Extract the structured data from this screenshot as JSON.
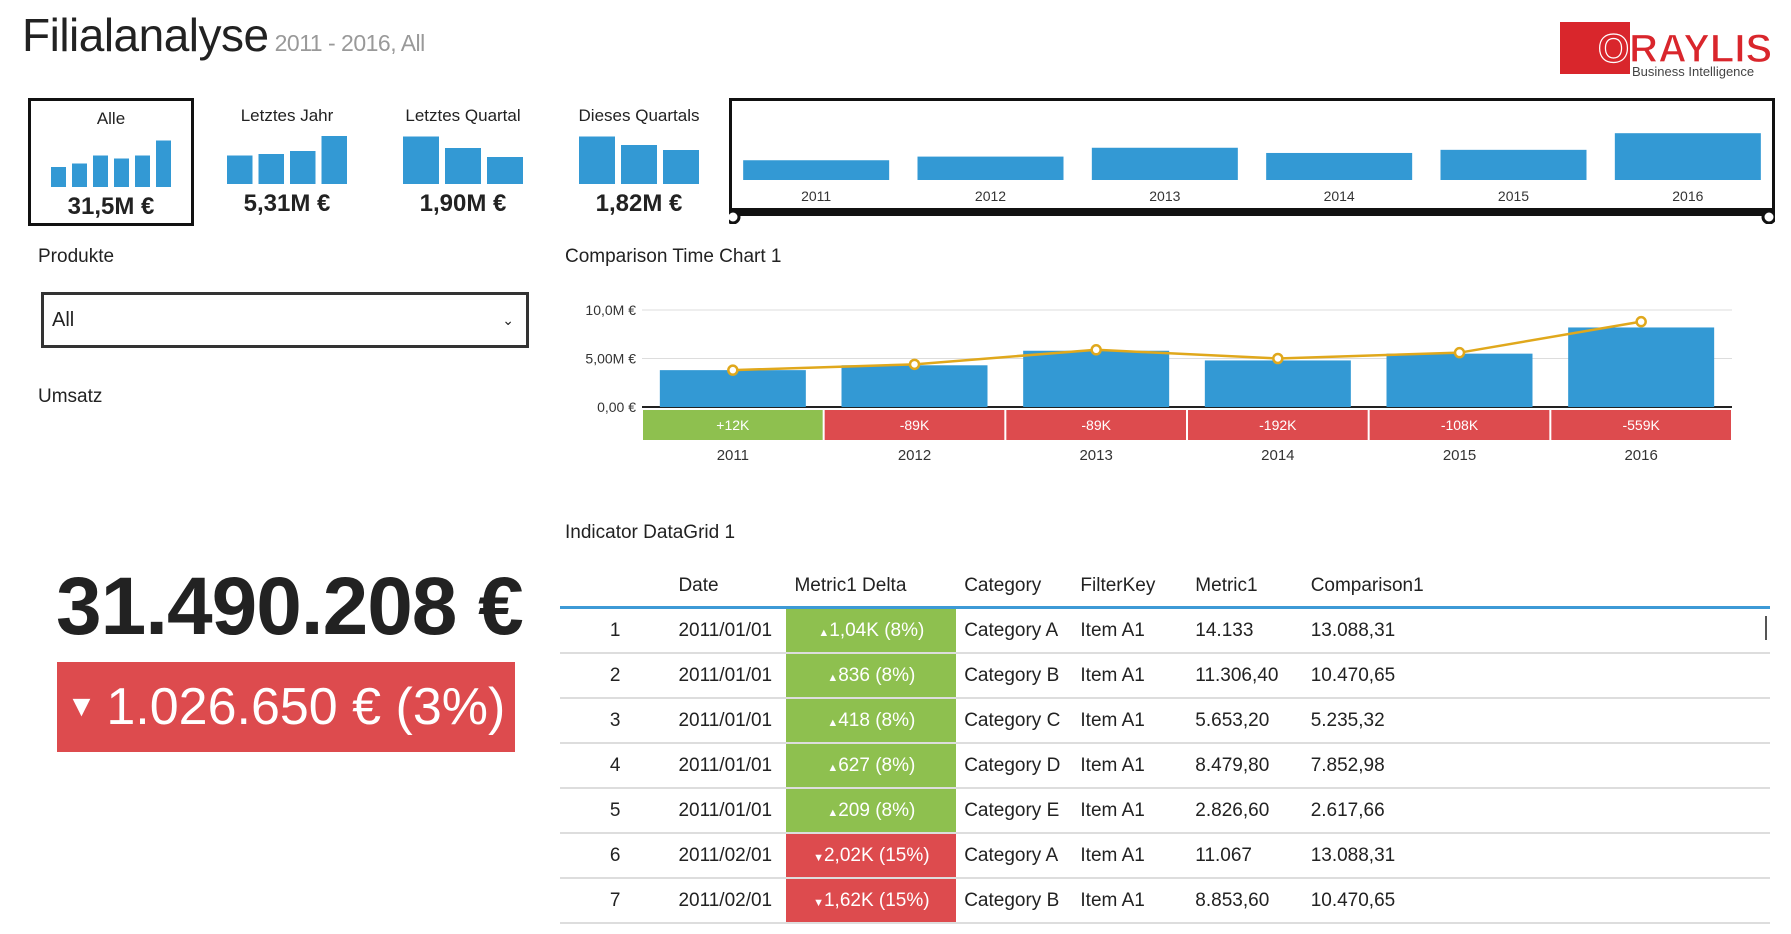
{
  "header": {
    "title": "Filialanalyse",
    "subtitle": "2011 - 2016, All",
    "logo_text": "ORAYLIS",
    "logo_tagline": "Business Intelligence"
  },
  "colors": {
    "bar": "#3399d4",
    "line": "#e0a81c",
    "positive": "#8ec04f",
    "negative": "#dd4b4e",
    "logo_red": "#d9262c"
  },
  "kpi_tiles": [
    {
      "label": "Alle",
      "value": "31,5M €",
      "selected": true,
      "bars": [
        0.4,
        0.47,
        0.63,
        0.57,
        0.63,
        0.93
      ]
    },
    {
      "label": "Letztes Jahr",
      "value": "5,31M €",
      "selected": false,
      "bars": [
        0.57,
        0.6,
        0.66,
        0.96
      ]
    },
    {
      "label": "Letztes Quartal",
      "value": "1,90M €",
      "selected": false,
      "bars": [
        0.95,
        0.72,
        0.54
      ]
    },
    {
      "label": "Dieses Quartals",
      "value": "1,82M €",
      "selected": false,
      "bars": [
        0.95,
        0.78,
        0.68
      ]
    }
  ],
  "year_slider": {
    "years": [
      "2011",
      "2012",
      "2013",
      "2014",
      "2015",
      "2016"
    ],
    "values": [
      0.38,
      0.45,
      0.62,
      0.52,
      0.58,
      0.9
    ]
  },
  "produkte": {
    "label": "Produkte",
    "selected": "All"
  },
  "umsatz": {
    "label": "Umsatz",
    "value": "31.490.208 €",
    "delta": "1.026.650 € (3%)",
    "delta_direction": "down"
  },
  "comparison_chart": {
    "title": "Comparison Time Chart 1",
    "chart_data": {
      "type": "bar",
      "categories": [
        "2011",
        "2012",
        "2013",
        "2014",
        "2015",
        "2016"
      ],
      "series": [
        {
          "type": "bar",
          "values": [
            3.8,
            4.3,
            5.8,
            4.8,
            5.5,
            8.2
          ]
        },
        {
          "type": "line",
          "values": [
            3.8,
            4.4,
            5.9,
            5.0,
            5.6,
            8.8
          ]
        }
      ],
      "y_ticks": [
        "0,00 €",
        "5,00M €",
        "10,0M €"
      ],
      "ylim": [
        0,
        10
      ],
      "deltas": [
        "+12K",
        "-89K",
        "-89K",
        "-192K",
        "-108K",
        "-559K"
      ],
      "delta_signs": [
        "positive",
        "negative",
        "negative",
        "negative",
        "negative",
        "negative"
      ]
    }
  },
  "datagrid": {
    "title": "Indicator DataGrid 1",
    "columns": [
      "",
      "Date",
      "Metric1 Delta",
      "Category",
      "FilterKey",
      "Metric1",
      "Comparison1"
    ],
    "rows": [
      {
        "idx": "1",
        "date": "2011/01/01",
        "delta": "1,04K (8%)",
        "dir": "up",
        "category": "Category A",
        "filterkey": "Item A1",
        "metric1": "14.133",
        "comparison1": "13.088,31"
      },
      {
        "idx": "2",
        "date": "2011/01/01",
        "delta": "836 (8%)",
        "dir": "up",
        "category": "Category B",
        "filterkey": "Item A1",
        "metric1": "11.306,40",
        "comparison1": "10.470,65"
      },
      {
        "idx": "3",
        "date": "2011/01/01",
        "delta": "418 (8%)",
        "dir": "up",
        "category": "Category C",
        "filterkey": "Item A1",
        "metric1": "5.653,20",
        "comparison1": "5.235,32"
      },
      {
        "idx": "4",
        "date": "2011/01/01",
        "delta": "627 (8%)",
        "dir": "up",
        "category": "Category D",
        "filterkey": "Item A1",
        "metric1": "8.479,80",
        "comparison1": "7.852,98"
      },
      {
        "idx": "5",
        "date": "2011/01/01",
        "delta": "209 (8%)",
        "dir": "up",
        "category": "Category E",
        "filterkey": "Item A1",
        "metric1": "2.826,60",
        "comparison1": "2.617,66"
      },
      {
        "idx": "6",
        "date": "2011/02/01",
        "delta": "2,02K (15%)",
        "dir": "down",
        "category": "Category A",
        "filterkey": "Item A1",
        "metric1": "11.067",
        "comparison1": "13.088,31"
      },
      {
        "idx": "7",
        "date": "2011/02/01",
        "delta": "1,62K (15%)",
        "dir": "down",
        "category": "Category B",
        "filterkey": "Item A1",
        "metric1": "8.853,60",
        "comparison1": "10.470,65"
      }
    ]
  }
}
